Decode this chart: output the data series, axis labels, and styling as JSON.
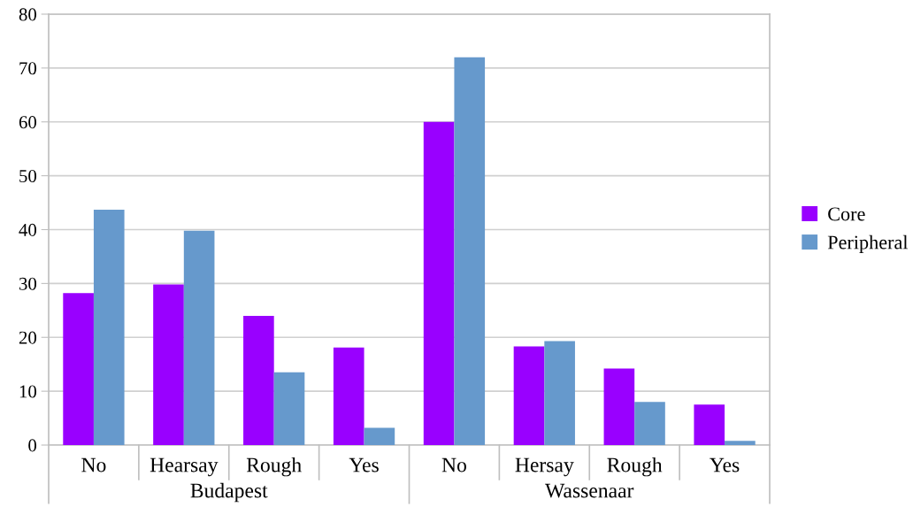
{
  "chart_data": {
    "type": "bar",
    "categories": [
      "No",
      "Hearsay",
      "Rough",
      "Yes",
      "No",
      "Hersay",
      "Rough",
      "Yes"
    ],
    "series": [
      {
        "name": "Core",
        "color": "#9900ff",
        "values": [
          28.2,
          29.8,
          24.0,
          18.1,
          60,
          18.3,
          14.2,
          7.5
        ]
      },
      {
        "name": "Peripheral",
        "color": "#6699cc",
        "values": [
          43.7,
          39.8,
          13.5,
          3.2,
          72.0,
          19.3,
          8.0,
          0.8
        ]
      }
    ],
    "annotations": [
      "Budapest",
      "Wassenaar"
    ],
    "ylim": [
      0,
      80
    ],
    "yticks": [
      0,
      10,
      20,
      30,
      40,
      50,
      60,
      70,
      80
    ],
    "grid": "y",
    "legend": "right"
  }
}
